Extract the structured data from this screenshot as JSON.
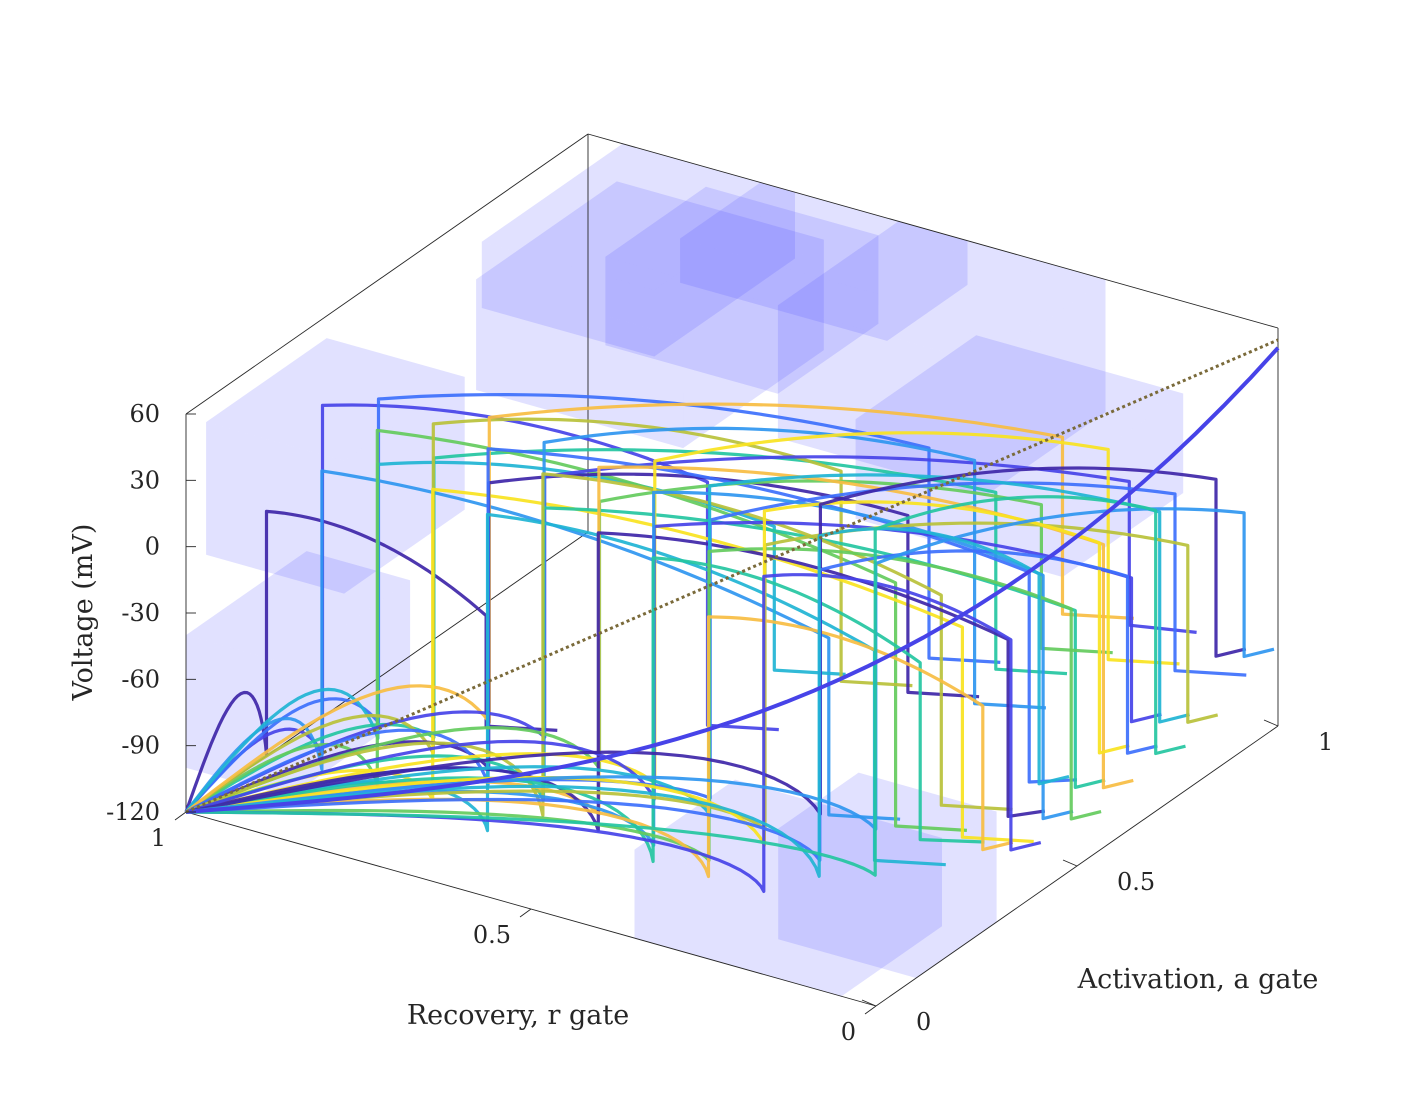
{
  "chart_data": {
    "type": "line",
    "subtype": "3d-line-with-translucent-boxes",
    "title": "",
    "xlabel": "Recovery, r gate",
    "ylabel": "Activation, a gate",
    "zlabel": "Voltage (mV)",
    "x_ticks": [
      "0",
      "0.5",
      "1"
    ],
    "y_ticks": [
      "0",
      "0.5",
      "1"
    ],
    "z_ticks": [
      "-120",
      "-90",
      "-60",
      "-30",
      "0",
      "30",
      "60"
    ],
    "xlim": [
      0,
      1
    ],
    "ylim": [
      0,
      1
    ],
    "zlim": [
      -120,
      60
    ],
    "grid": false,
    "legend": "none",
    "box_color": "#4d4dff",
    "trajectory_colors": [
      "#3e26a8",
      "#4743e8",
      "#3d70fc",
      "#2f96f0",
      "#1fb4d4",
      "#24c6a1",
      "#64cb5d",
      "#b9c13a",
      "#f7bd42",
      "#f9e31f"
    ],
    "trajectories_note": "approximate family of voltage trajectories",
    "boxes_note": "translucent regions"
  }
}
